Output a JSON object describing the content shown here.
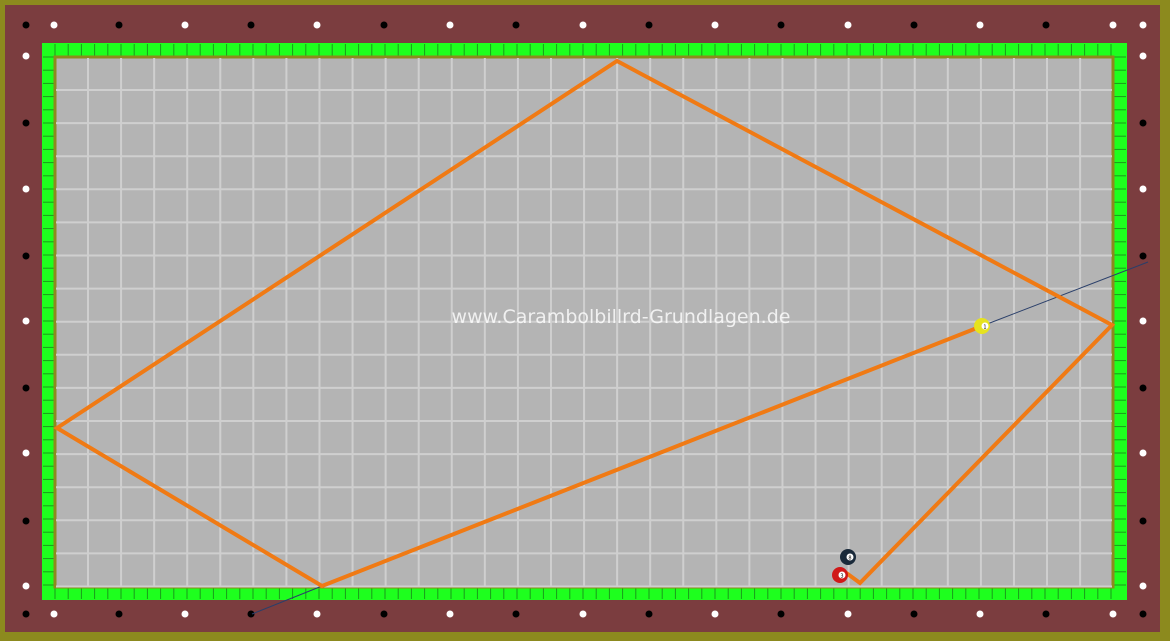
{
  "watermark": "www.Carambolbillrd-Grundlagen.de",
  "colors": {
    "frame": "#8c8a1e",
    "rail": "#7b3d3f",
    "cushion": "#1eff1e",
    "felt": "#b4b4b4",
    "grid": "#cfcfcf",
    "path": "#f07a14",
    "aim_line": "#2a3f6a"
  },
  "balls": [
    {
      "name": "yellow-ball",
      "color": "#e6e31e",
      "number": "1"
    },
    {
      "name": "black-ball",
      "color": "#1a2a3a",
      "number": "8"
    },
    {
      "name": "red-ball",
      "color": "#d01818",
      "number": "3"
    }
  ]
}
